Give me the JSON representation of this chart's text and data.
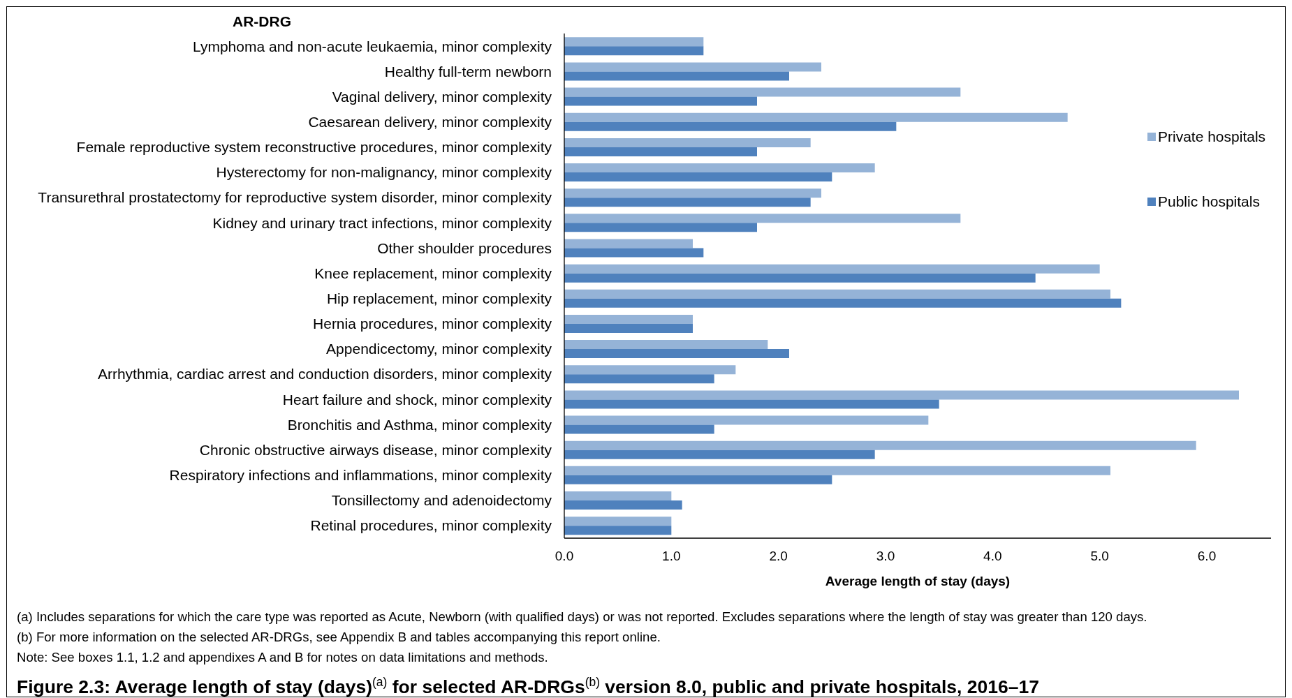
{
  "chart_data": {
    "type": "bar",
    "orientation": "horizontal",
    "title": "Figure 2.3: Average length of stay (days)$^{(a)}$ for selected AR-DRGs$^{(b)}$ version 8.0, public and private hospitals, 2016–17",
    "xlabel": "Average length of stay (days)",
    "ylabel": "AR-DRG",
    "categories": [
      "Lymphoma and non-acute leukaemia, minor complexity",
      "Healthy full-term newborn",
      "Vaginal delivery, minor complexity",
      "Caesarean delivery, minor complexity",
      "Female reproductive system reconstructive procedures, minor complexity",
      "Hysterectomy for non-malignancy, minor complexity",
      "Transurethral prostatectomy for reproductive system disorder, minor complexity",
      "Kidney and urinary tract infections, minor complexity",
      "Other shoulder procedures",
      "Knee replacement, minor complexity",
      "Hip replacement, minor complexity",
      "Hernia procedures, minor complexity",
      "Appendicectomy, minor complexity",
      "Arrhythmia, cardiac arrest and conduction disorders, minor complexity",
      "Heart failure and shock, minor complexity",
      "Bronchitis and Asthma, minor complexity",
      "Chronic obstructive airways disease, minor complexity",
      "Respiratory infections and inflammations, minor complexity",
      "Tonsillectomy and adenoidectomy",
      "Retinal procedures, minor complexity"
    ],
    "series": [
      {
        "name": "Private hospitals",
        "color": "#95b3d7",
        "values": [
          1.3,
          2.4,
          3.7,
          4.7,
          2.3,
          2.9,
          2.4,
          3.7,
          1.2,
          5.0,
          5.1,
          1.2,
          1.9,
          1.6,
          6.3,
          3.4,
          5.9,
          5.1,
          1.0,
          1.0
        ]
      },
      {
        "name": "Public hospitals",
        "color": "#4f81bd",
        "values": [
          1.3,
          2.1,
          1.8,
          3.1,
          1.8,
          2.5,
          2.3,
          1.8,
          1.3,
          4.4,
          5.2,
          1.2,
          2.1,
          1.4,
          3.5,
          1.4,
          2.9,
          2.5,
          1.1,
          1.0
        ]
      }
    ],
    "xlim": [
      0,
      6.6
    ],
    "xticks": [
      {
        "value": 0,
        "label": "0.0"
      },
      {
        "value": 1,
        "label": "1.0"
      },
      {
        "value": 2,
        "label": "2.0"
      },
      {
        "value": 3,
        "label": "3.0"
      },
      {
        "value": 4,
        "label": "4.0"
      },
      {
        "value": 5,
        "label": "5.0"
      },
      {
        "value": 6,
        "label": "6.0"
      }
    ],
    "legend": "right",
    "annotations": [
      "(a) Includes separations for which the care type was reported as Acute, Newborn (with qualified days) or was not reported. Excludes separations where the length of stay was greater than 120 days.",
      "(b) For more information on the selected AR-DRGs, see Appendix B and tables accompanying this report online.",
      "Note: See boxes 1.1, 1.2 and appendixes A and B for notes on data limitations and methods."
    ]
  }
}
